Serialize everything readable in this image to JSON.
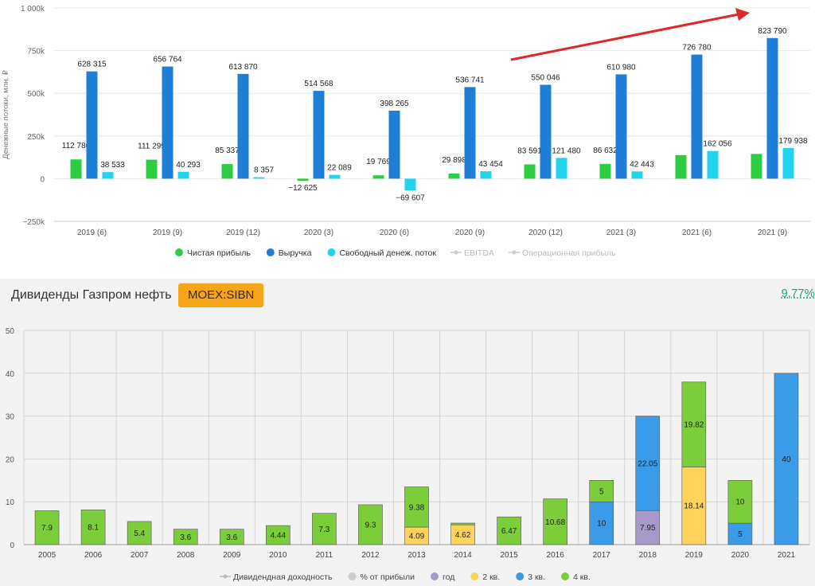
{
  "chart_data": [
    {
      "type": "bar",
      "ylabel": "Денежные потоки, млн. ₽",
      "ylim": [
        -250000,
        1000000
      ],
      "yticks": [
        -250000,
        0,
        250000,
        500000,
        750000,
        1000000
      ],
      "ytick_labels": [
        "−250k",
        "0",
        "250k",
        "500k",
        "750k",
        "1 000k"
      ],
      "categories": [
        "2019 (6)",
        "2019 (9)",
        "2019 (12)",
        "2020 (3)",
        "2020 (6)",
        "2020 (9)",
        "2020 (12)",
        "2021 (3)",
        "2021 (6)",
        "2021 (9)"
      ],
      "series": [
        {
          "name": "Чистая прибыль",
          "color": "#2ecc40",
          "values": [
            112780,
            111299,
            85337,
            -12625,
            19769,
            29898,
            83591,
            86632,
            138000,
            145000
          ],
          "labels": [
            "112 780",
            "111 299",
            "85 337",
            "−12 625",
            "19 769",
            "29 898",
            "83 591",
            "86 632",
            "",
            ""
          ]
        },
        {
          "name": "Выручка",
          "color": "#1f7ed6",
          "values": [
            628315,
            656764,
            613870,
            514568,
            398265,
            536741,
            550046,
            610980,
            726780,
            823790
          ],
          "labels": [
            "628 315",
            "656 764",
            "613 870",
            "514 568",
            "398 265",
            "536 741",
            "550 046",
            "610 980",
            "726 780",
            "823 790"
          ]
        },
        {
          "name": "Свободный денеж. поток",
          "color": "#22d3ee",
          "values": [
            38533,
            40293,
            8357,
            22089,
            -69607,
            43454,
            121480,
            42443,
            162056,
            179938
          ],
          "labels": [
            "38 533",
            "40 293",
            "8 357",
            "22 089",
            "−69 607",
            "43 454",
            "121 480",
            "42 443",
            "162 056",
            "179 938"
          ]
        }
      ],
      "legend": [
        {
          "name": "Чистая прибыль",
          "color": "#2ecc40",
          "active": true
        },
        {
          "name": "Выручка",
          "color": "#1f7ed6",
          "active": true
        },
        {
          "name": "Свободный денеж. поток",
          "color": "#22d3ee",
          "active": true
        },
        {
          "name": "EBITDA",
          "color": "#cccccc",
          "active": false
        },
        {
          "name": "Операционная прибыль",
          "color": "#cccccc",
          "active": false
        }
      ],
      "legend_position": "bottom",
      "annotation": "red trend arrow pointing up-right",
      "annotation_color": "#e0262a"
    },
    {
      "type": "bar",
      "stacked": true,
      "ylim": [
        0,
        50
      ],
      "yticks": [
        0,
        10,
        20,
        30,
        40,
        50
      ],
      "categories": [
        "2005",
        "2006",
        "2007",
        "2008",
        "2009",
        "2010",
        "2011",
        "2012",
        "2013",
        "2014",
        "2015",
        "2016",
        "2017",
        "2018",
        "2019",
        "2020",
        "2021"
      ],
      "series": [
        {
          "name": "год",
          "color": "#a89ac8",
          "values": [
            0,
            0,
            0,
            0,
            0,
            0,
            0,
            0,
            0,
            0,
            0,
            0,
            0,
            7.95,
            0,
            0,
            0
          ]
        },
        {
          "name": "2 кв.",
          "color": "#fdd35c",
          "values": [
            0,
            0,
            0,
            0,
            0,
            0,
            0,
            0,
            4.09,
            4.62,
            0,
            0,
            0,
            0,
            18.14,
            0,
            0
          ]
        },
        {
          "name": "3 кв.",
          "color": "#3a9be8",
          "values": [
            0,
            0,
            0,
            0,
            0,
            0,
            0,
            0,
            0,
            0,
            0,
            0,
            10,
            22.05,
            0,
            5,
            40
          ]
        },
        {
          "name": "4 кв.",
          "color": "#7ccd3a",
          "values": [
            7.9,
            8.1,
            5.4,
            3.6,
            3.6,
            4.44,
            7.3,
            9.3,
            9.38,
            0.4,
            6.47,
            10.68,
            5,
            0,
            19.82,
            10,
            0
          ]
        }
      ],
      "segment_labels": {
        "год": [
          "",
          "",
          "",
          "",
          "",
          "",
          "",
          "",
          "",
          "",
          "",
          "",
          "",
          "7.95",
          "",
          "",
          ""
        ],
        "2 кв.": [
          "",
          "",
          "",
          "",
          "",
          "",
          "",
          "",
          "4.09",
          "4.62",
          "",
          "",
          "",
          "",
          "18.14",
          "",
          ""
        ],
        "3 кв.": [
          "",
          "",
          "",
          "",
          "",
          "",
          "",
          "",
          "",
          "",
          "",
          "",
          "10",
          "22.05",
          "",
          "5",
          "40"
        ],
        "4 кв.": [
          "7.9",
          "8.1",
          "5.4",
          "3.6",
          "3.6",
          "4.44",
          "7.3",
          "9.3",
          "9.38",
          "",
          "6.47",
          "10.68",
          "5",
          "",
          "19.82",
          "10",
          ""
        ]
      },
      "legend": [
        {
          "name": "Дивидендная доходность",
          "color": "#bbbbbb",
          "kind": "line"
        },
        {
          "name": "% от прибыли",
          "color": "#cccccc",
          "kind": "dot"
        },
        {
          "name": "год",
          "color": "#a89ac8",
          "kind": "dot"
        },
        {
          "name": "2 кв.",
          "color": "#fdd35c",
          "kind": "dot"
        },
        {
          "name": "3 кв.",
          "color": "#3a9be8",
          "kind": "dot"
        },
        {
          "name": "4 кв.",
          "color": "#7ccd3a",
          "kind": "dot"
        }
      ],
      "legend_position": "bottom",
      "grid": true
    }
  ],
  "dividends_header": {
    "title": "Дивиденды Газпром нефть",
    "ticker": "MOEX:SIBN",
    "yield": "9,77%"
  }
}
